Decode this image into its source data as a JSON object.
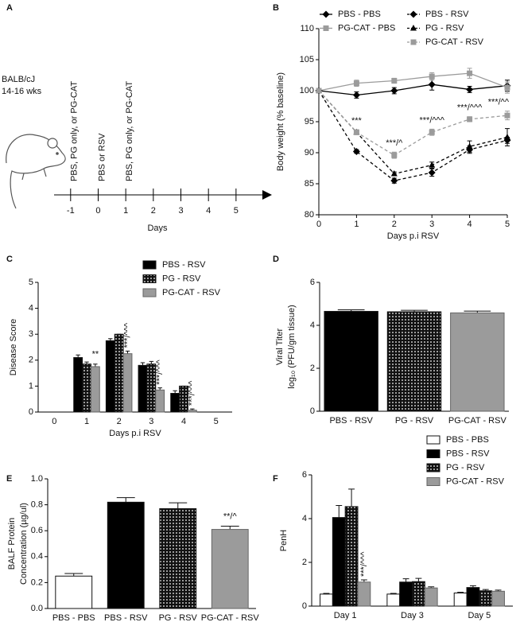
{
  "chart_data": [
    {
      "type": "timeline",
      "panel_label": "A",
      "subject": [
        "BALB/cJ",
        "14-16 wks"
      ],
      "xlim": [
        -1.6,
        6.1
      ],
      "xticks": [
        -1,
        0,
        1,
        2,
        3,
        4,
        5
      ],
      "xlabel": "Days",
      "events": [
        {
          "x": -1,
          "label": "PBS, PG only, or PG-CAT"
        },
        {
          "x": 0,
          "label": "PBS or RSV"
        },
        {
          "x": 1,
          "label": "PBS, PG only, or PG-CAT"
        }
      ]
    },
    {
      "type": "line",
      "panel_label": "B",
      "xlabel": "Days p.i RSV",
      "ylabel": "Body weight (% baseline)",
      "x": [
        0,
        1,
        2,
        3,
        4,
        5
      ],
      "xlim": [
        0,
        5
      ],
      "xticks": [
        0,
        1,
        2,
        3,
        4,
        5
      ],
      "ylim": [
        80,
        110
      ],
      "yticks": [
        80,
        85,
        90,
        95,
        100,
        105,
        110
      ],
      "legend": "top",
      "series": [
        {
          "name": "PBS - PBS",
          "color": "#000000",
          "marker": "diamond",
          "dashed": false,
          "values": [
            100,
            99.3,
            100,
            101,
            100.2,
            100.8
          ],
          "errors": [
            0,
            0.5,
            0.5,
            0.9,
            0.5,
            0.9
          ]
        },
        {
          "name": "PG-CAT - PBS",
          "color": "#9b9b9b",
          "marker": "square",
          "dashed": false,
          "values": [
            100,
            101.2,
            101.6,
            102.3,
            102.8,
            100.5
          ],
          "errors": [
            0,
            0.5,
            0.4,
            0.6,
            0.8,
            0.9
          ]
        },
        {
          "name": "PBS - RSV",
          "color": "#000000",
          "marker": "diamond",
          "dashed": true,
          "values": [
            100,
            90.2,
            85.5,
            86.8,
            90.5,
            92
          ],
          "errors": [
            0,
            0.3,
            0.4,
            0.6,
            0.6,
            0.5
          ]
        },
        {
          "name": "PG - RSV",
          "color": "#000000",
          "marker": "triangle",
          "dashed": true,
          "values": [
            100,
            93.3,
            86.6,
            88,
            91,
            92.5
          ],
          "errors": [
            0,
            0.3,
            0.3,
            0.5,
            0.9,
            1.4
          ]
        },
        {
          "name": "PG-CAT - RSV",
          "color": "#9b9b9b",
          "marker": "square",
          "dashed": true,
          "values": [
            100,
            93.3,
            89.6,
            93.3,
            95.4,
            96
          ],
          "errors": [
            0,
            0.4,
            0.5,
            0.5,
            0.4,
            0.7
          ]
        }
      ],
      "annotations": [
        {
          "x": 1,
          "text": "***"
        },
        {
          "x": 2,
          "text": "***/^"
        },
        {
          "x": 3,
          "text": "***/^^^"
        },
        {
          "x": 4,
          "text": "***/^^^"
        },
        {
          "x": 5,
          "text": "***/^^"
        }
      ]
    },
    {
      "type": "bar",
      "panel_label": "C",
      "xlabel": "Days p.i RSV",
      "ylabel": "Disease Score",
      "categories": [
        "0",
        "1",
        "2",
        "3",
        "4",
        "5"
      ],
      "ylim": [
        0,
        5
      ],
      "yticks": [
        0,
        1,
        2,
        3,
        4,
        5
      ],
      "legend": "upper right",
      "series": [
        {
          "name": "PBS - RSV",
          "color": "#000000",
          "values": [
            null,
            2.1,
            2.75,
            1.8,
            0.72,
            null
          ],
          "errors": [
            null,
            0.1,
            0.08,
            0.1,
            0.1,
            null
          ]
        },
        {
          "name": "PG - RSV",
          "color": "dots",
          "values": [
            null,
            1.85,
            3.0,
            1.85,
            1.0,
            null
          ],
          "errors": [
            null,
            0.08,
            0,
            0.1,
            0,
            null
          ]
        },
        {
          "name": "PG-CAT - RSV",
          "color": "#9b9b9b",
          "values": [
            null,
            1.75,
            2.25,
            0.85,
            0.07,
            null
          ],
          "errors": [
            null,
            0.1,
            0.1,
            0.08,
            0.05,
            null
          ]
        }
      ],
      "annotations": [
        {
          "category": "1",
          "text": "**"
        },
        {
          "category": "2",
          "text": "***/^^^"
        },
        {
          "category": "3",
          "text": "***/^^^"
        },
        {
          "category": "4",
          "text": "***/^^^"
        }
      ]
    },
    {
      "type": "bar",
      "panel_label": "D",
      "ylabel": [
        "Viral Titer",
        "log₁₀ (PFU/gm tissue)"
      ],
      "categories": [
        "PBS - RSV",
        "PG - RSV",
        "PG-CAT - RSV"
      ],
      "values": [
        4.65,
        4.63,
        4.58
      ],
      "errors": [
        0.07,
        0.07,
        0.08
      ],
      "colors": [
        "#000000",
        "dots",
        "#9b9b9b"
      ],
      "ylim": [
        0,
        6
      ],
      "yticks": [
        0,
        2,
        4,
        6
      ]
    },
    {
      "type": "bar",
      "panel_label": "E",
      "ylabel": [
        "BALF Protein",
        "Concentration (µg/ul)"
      ],
      "categories": [
        "PBS - PBS",
        "PBS - RSV",
        "PG - RSV",
        "PG-CAT - RSV"
      ],
      "values": [
        0.25,
        0.82,
        0.77,
        0.61
      ],
      "errors": [
        0.02,
        0.035,
        0.045,
        0.025
      ],
      "colors": [
        "#ffffff",
        "#000000",
        "dots",
        "#9b9b9b"
      ],
      "ylim": [
        0,
        1.0
      ],
      "yticks": [
        {
          "value": 0,
          "label": "0.0"
        },
        {
          "value": 0.2,
          "label": "0.2"
        },
        {
          "value": 0.4,
          "label": "0.4"
        },
        {
          "value": 0.6,
          "label": "0.6"
        },
        {
          "value": 0.8,
          "label": "0.8"
        },
        {
          "value": 1.0,
          "label": "1.0"
        }
      ],
      "annotations": [
        {
          "category": "PG-CAT - RSV",
          "text": "**/^"
        }
      ]
    },
    {
      "type": "bar",
      "panel_label": "F",
      "ylabel": "PenH",
      "categories": [
        "Day 1",
        "Day 3",
        "Day 5"
      ],
      "ylim": [
        0,
        6
      ],
      "yticks": [
        0,
        2,
        4,
        6
      ],
      "legend": "upper right",
      "series": [
        {
          "name": "PBS - PBS",
          "color": "#ffffff",
          "values": [
            0.55,
            0.55,
            0.6
          ],
          "errors": [
            0.03,
            0.03,
            0.03
          ]
        },
        {
          "name": "PBS - RSV",
          "color": "#000000",
          "values": [
            4.05,
            1.1,
            0.85
          ],
          "errors": [
            0.55,
            0.15,
            0.08
          ]
        },
        {
          "name": "PG - RSV",
          "color": "dots",
          "values": [
            4.55,
            1.12,
            0.7
          ],
          "errors": [
            0.8,
            0.15,
            0.06
          ]
        },
        {
          "name": "PG-CAT - RSV",
          "color": "#9b9b9b",
          "values": [
            1.1,
            0.83,
            0.68
          ],
          "errors": [
            0.1,
            0.05,
            0.05
          ]
        }
      ],
      "annotations": [
        {
          "category": "Day 1",
          "text": "***/^^^"
        }
      ]
    }
  ]
}
